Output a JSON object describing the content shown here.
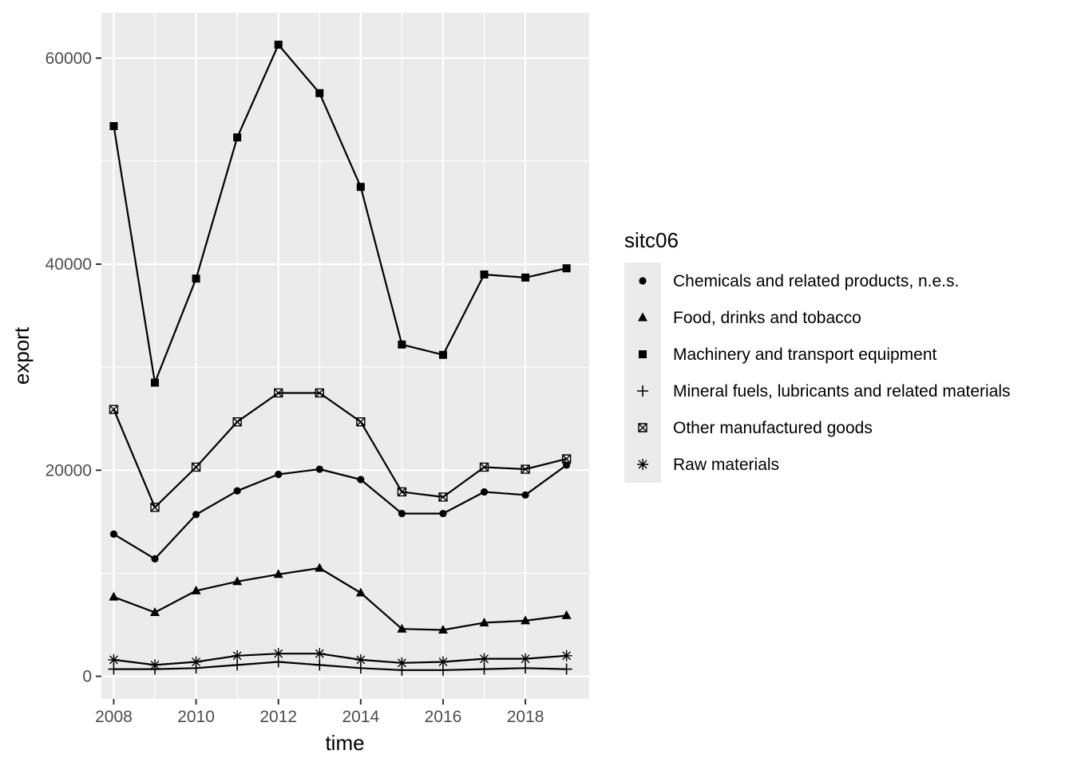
{
  "chart_data": {
    "type": "line",
    "xlabel": "time",
    "ylabel": "export",
    "xlim": [
      2007.7,
      2019.55
    ],
    "ylim": [
      -2200,
      64400
    ],
    "x_ticks": [
      2008,
      2010,
      2012,
      2014,
      2016,
      2018
    ],
    "y_ticks": [
      0,
      20000,
      40000,
      60000
    ],
    "grid": true,
    "legend": {
      "title": "sitc06",
      "placement": "right"
    },
    "x": [
      2008,
      2009,
      2010,
      2011,
      2012,
      2013,
      2014,
      2015,
      2016,
      2017,
      2018,
      2019
    ],
    "series": [
      {
        "name": "Chemicals and related products, n.e.s.",
        "shape": "circle",
        "values": [
          13800,
          11400,
          15700,
          18000,
          19600,
          20100,
          19100,
          15800,
          15800,
          17900,
          17600,
          20500
        ]
      },
      {
        "name": "Food, drinks and tobacco",
        "shape": "triangle",
        "values": [
          7700,
          6200,
          8300,
          9200,
          9900,
          10500,
          8100,
          4600,
          4500,
          5200,
          5400,
          5900
        ]
      },
      {
        "name": "Machinery and transport equipment",
        "shape": "square",
        "values": [
          53400,
          28500,
          38600,
          52300,
          61300,
          56600,
          47500,
          32200,
          31200,
          39000,
          38700,
          39600
        ]
      },
      {
        "name": "Mineral fuels, lubricants and related materials",
        "shape": "plus",
        "values": [
          700,
          700,
          800,
          1100,
          1400,
          1100,
          800,
          600,
          600,
          700,
          800,
          700
        ]
      },
      {
        "name": "Other manufactured goods",
        "shape": "square-cross",
        "values": [
          25900,
          16400,
          20300,
          24700,
          27500,
          27500,
          24700,
          17900,
          17400,
          20300,
          20100,
          21100
        ]
      },
      {
        "name": "Raw materials",
        "shape": "asterisk",
        "values": [
          1600,
          1100,
          1400,
          2000,
          2200,
          2200,
          1600,
          1300,
          1400,
          1700,
          1700,
          2000
        ]
      }
    ]
  }
}
